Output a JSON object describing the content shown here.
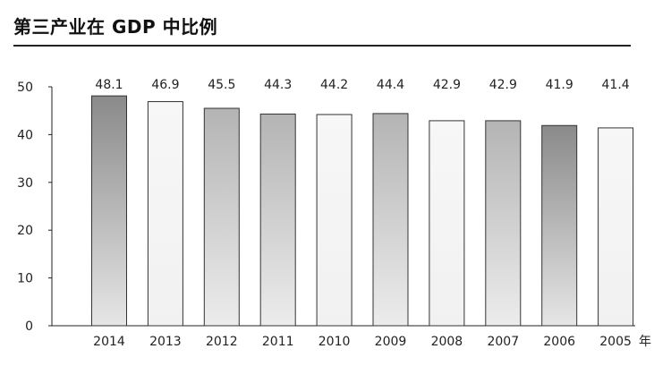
{
  "title": "第三产业在 GDP 中比例",
  "chart_data": {
    "type": "bar",
    "title": "第三产业在 GDP 中比例",
    "categories": [
      "2014",
      "2013",
      "2012",
      "2011",
      "2010",
      "2009",
      "2008",
      "2007",
      "2006",
      "2005"
    ],
    "values": [
      48.1,
      46.9,
      45.5,
      44.3,
      44.2,
      44.4,
      42.9,
      42.9,
      41.9,
      41.4
    ],
    "xlabel": "年",
    "ylabel": "",
    "ylim": [
      0,
      50
    ],
    "yticks": [
      0,
      10,
      20,
      30,
      40,
      50
    ],
    "grid": false,
    "bar_tones": [
      "dark",
      "light",
      "mid",
      "mid",
      "light",
      "mid",
      "light",
      "mid",
      "dark",
      "light"
    ]
  }
}
